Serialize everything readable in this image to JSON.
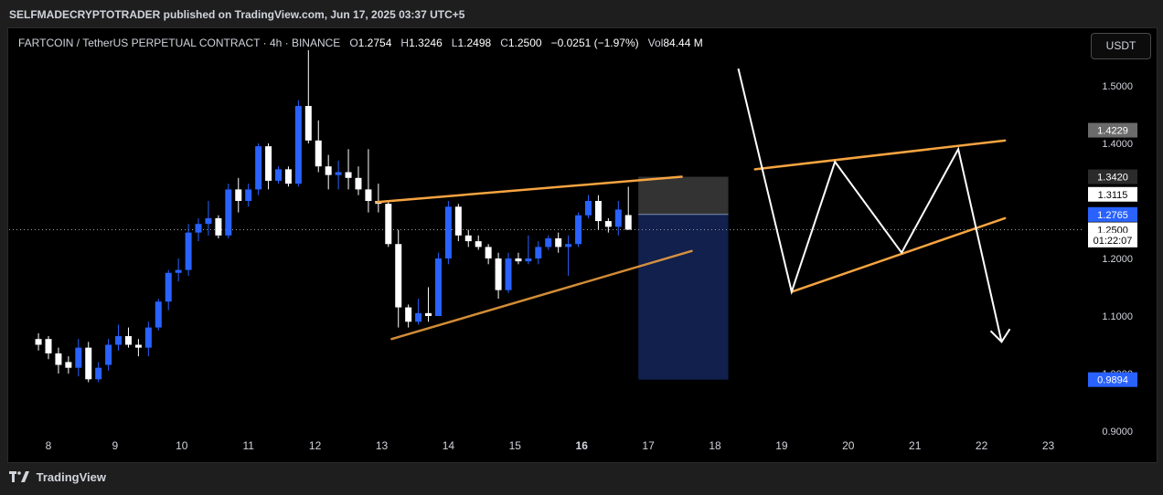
{
  "header": {
    "published": "SELFMADECRYPTOTRADER published on TradingView.com, Jun 17, 2025 03:37 UTC+5"
  },
  "legend": {
    "symbol": "FARTCOIN / TetherUS PERPETUAL CONTRACT · 4h · BINANCE",
    "o_label": "O",
    "o": "1.2754",
    "h_label": "H",
    "h": "1.3246",
    "l_label": "L",
    "l": "1.2498",
    "c_label": "C",
    "c": "1.2500",
    "change": "−0.0251 (−1.97%)",
    "vol_label": "Vol",
    "vol": "84.44 M"
  },
  "currency_button": "USDT",
  "footer": {
    "brand": "TradingView"
  },
  "colors": {
    "up": "#2962ff",
    "down": "#ffffff",
    "trendline": "#f7a440",
    "projection": "#ffffff",
    "background": "#000000"
  },
  "chart_data": {
    "type": "candlestick",
    "ylim": [
      0.9,
      1.57
    ],
    "y_ticks": [
      "1.5000",
      "1.4000",
      "1.2000",
      "1.1000",
      "1.0000",
      "0.9000"
    ],
    "x_ticks": [
      "8",
      "9",
      "10",
      "11",
      "12",
      "13",
      "14",
      "15",
      "16",
      "17",
      "18",
      "19",
      "20",
      "21",
      "22",
      "23"
    ],
    "price_labels": [
      {
        "text": "1.4229",
        "value": 1.4229,
        "style": "gray"
      },
      {
        "text": "1.3420",
        "value": 1.342,
        "style": "dark"
      },
      {
        "text": "1.3115",
        "value": 1.3115,
        "style": "white"
      },
      {
        "text": "1.2765",
        "value": 1.2765,
        "style": "blue"
      },
      {
        "text": "1.2500",
        "value": 1.25,
        "style": "current"
      },
      {
        "text": "01:22:07",
        "value": 1.232,
        "style": "timer"
      },
      {
        "text": "0.9894",
        "value": 0.9894,
        "style": "blue"
      }
    ],
    "current_price": 1.25,
    "candles": [
      {
        "t": 7.85,
        "o": 1.06,
        "h": 1.07,
        "l": 1.04,
        "c": 1.05
      },
      {
        "t": 8.0,
        "o": 1.06,
        "h": 1.065,
        "l": 1.025,
        "c": 1.035
      },
      {
        "t": 8.15,
        "o": 1.035,
        "h": 1.045,
        "l": 1.0,
        "c": 1.015
      },
      {
        "t": 8.3,
        "o": 1.02,
        "h": 1.03,
        "l": 1.0,
        "c": 1.01
      },
      {
        "t": 8.45,
        "o": 1.01,
        "h": 1.06,
        "l": 0.995,
        "c": 1.045
      },
      {
        "t": 8.6,
        "o": 1.045,
        "h": 1.055,
        "l": 0.985,
        "c": 0.99
      },
      {
        "t": 8.75,
        "o": 0.99,
        "h": 1.02,
        "l": 0.985,
        "c": 1.01
      },
      {
        "t": 8.9,
        "o": 1.015,
        "h": 1.06,
        "l": 1.005,
        "c": 1.05
      },
      {
        "t": 9.05,
        "o": 1.05,
        "h": 1.085,
        "l": 1.04,
        "c": 1.065
      },
      {
        "t": 9.2,
        "o": 1.065,
        "h": 1.08,
        "l": 1.045,
        "c": 1.05
      },
      {
        "t": 9.35,
        "o": 1.05,
        "h": 1.06,
        "l": 1.03,
        "c": 1.045
      },
      {
        "t": 9.5,
        "o": 1.045,
        "h": 1.09,
        "l": 1.03,
        "c": 1.08
      },
      {
        "t": 9.65,
        "o": 1.08,
        "h": 1.13,
        "l": 1.075,
        "c": 1.125
      },
      {
        "t": 9.8,
        "o": 1.125,
        "h": 1.18,
        "l": 1.11,
        "c": 1.175
      },
      {
        "t": 9.95,
        "o": 1.175,
        "h": 1.2,
        "l": 1.16,
        "c": 1.18
      },
      {
        "t": 10.1,
        "o": 1.18,
        "h": 1.26,
        "l": 1.17,
        "c": 1.245
      },
      {
        "t": 10.25,
        "o": 1.245,
        "h": 1.27,
        "l": 1.23,
        "c": 1.26
      },
      {
        "t": 10.4,
        "o": 1.26,
        "h": 1.3,
        "l": 1.24,
        "c": 1.27
      },
      {
        "t": 10.55,
        "o": 1.27,
        "h": 1.275,
        "l": 1.235,
        "c": 1.24
      },
      {
        "t": 10.7,
        "o": 1.24,
        "h": 1.33,
        "l": 1.235,
        "c": 1.32
      },
      {
        "t": 10.85,
        "o": 1.32,
        "h": 1.34,
        "l": 1.28,
        "c": 1.3
      },
      {
        "t": 11.0,
        "o": 1.3,
        "h": 1.33,
        "l": 1.29,
        "c": 1.32
      },
      {
        "t": 11.15,
        "o": 1.32,
        "h": 1.4,
        "l": 1.31,
        "c": 1.395
      },
      {
        "t": 11.3,
        "o": 1.395,
        "h": 1.4,
        "l": 1.32,
        "c": 1.335
      },
      {
        "t": 11.45,
        "o": 1.335,
        "h": 1.36,
        "l": 1.33,
        "c": 1.355
      },
      {
        "t": 11.6,
        "o": 1.355,
        "h": 1.36,
        "l": 1.325,
        "c": 1.33
      },
      {
        "t": 11.75,
        "o": 1.33,
        "h": 1.475,
        "l": 1.325,
        "c": 1.465
      },
      {
        "t": 11.9,
        "o": 1.465,
        "h": 1.562,
        "l": 1.4,
        "c": 1.405
      },
      {
        "t": 12.05,
        "o": 1.405,
        "h": 1.44,
        "l": 1.35,
        "c": 1.36
      },
      {
        "t": 12.2,
        "o": 1.36,
        "h": 1.38,
        "l": 1.32,
        "c": 1.345
      },
      {
        "t": 12.35,
        "o": 1.345,
        "h": 1.37,
        "l": 1.32,
        "c": 1.35
      },
      {
        "t": 12.5,
        "o": 1.35,
        "h": 1.39,
        "l": 1.32,
        "c": 1.34
      },
      {
        "t": 12.65,
        "o": 1.34,
        "h": 1.36,
        "l": 1.31,
        "c": 1.32
      },
      {
        "t": 12.8,
        "o": 1.32,
        "h": 1.39,
        "l": 1.28,
        "c": 1.3
      },
      {
        "t": 12.95,
        "o": 1.3,
        "h": 1.33,
        "l": 1.28,
        "c": 1.295
      },
      {
        "t": 13.1,
        "o": 1.295,
        "h": 1.3,
        "l": 1.22,
        "c": 1.225
      },
      {
        "t": 13.25,
        "o": 1.225,
        "h": 1.25,
        "l": 1.08,
        "c": 1.115
      },
      {
        "t": 13.4,
        "o": 1.115,
        "h": 1.12,
        "l": 1.08,
        "c": 1.09
      },
      {
        "t": 13.55,
        "o": 1.09,
        "h": 1.13,
        "l": 1.085,
        "c": 1.105
      },
      {
        "t": 13.7,
        "o": 1.105,
        "h": 1.15,
        "l": 1.09,
        "c": 1.1
      },
      {
        "t": 13.85,
        "o": 1.1,
        "h": 1.21,
        "l": 1.1,
        "c": 1.2
      },
      {
        "t": 14.0,
        "o": 1.2,
        "h": 1.3,
        "l": 1.19,
        "c": 1.29
      },
      {
        "t": 14.15,
        "o": 1.29,
        "h": 1.295,
        "l": 1.23,
        "c": 1.24
      },
      {
        "t": 14.3,
        "o": 1.24,
        "h": 1.25,
        "l": 1.22,
        "c": 1.23
      },
      {
        "t": 14.45,
        "o": 1.23,
        "h": 1.24,
        "l": 1.215,
        "c": 1.22
      },
      {
        "t": 14.6,
        "o": 1.22,
        "h": 1.225,
        "l": 1.19,
        "c": 1.2
      },
      {
        "t": 14.75,
        "o": 1.2,
        "h": 1.21,
        "l": 1.13,
        "c": 1.145
      },
      {
        "t": 14.9,
        "o": 1.145,
        "h": 1.21,
        "l": 1.14,
        "c": 1.2
      },
      {
        "t": 15.05,
        "o": 1.2,
        "h": 1.21,
        "l": 1.19,
        "c": 1.195
      },
      {
        "t": 15.2,
        "o": 1.195,
        "h": 1.24,
        "l": 1.19,
        "c": 1.2
      },
      {
        "t": 15.35,
        "o": 1.2,
        "h": 1.23,
        "l": 1.19,
        "c": 1.22
      },
      {
        "t": 15.5,
        "o": 1.22,
        "h": 1.24,
        "l": 1.215,
        "c": 1.235
      },
      {
        "t": 15.65,
        "o": 1.235,
        "h": 1.245,
        "l": 1.21,
        "c": 1.22
      },
      {
        "t": 15.8,
        "o": 1.22,
        "h": 1.24,
        "l": 1.17,
        "c": 1.225
      },
      {
        "t": 15.95,
        "o": 1.225,
        "h": 1.28,
        "l": 1.22,
        "c": 1.275
      },
      {
        "t": 16.1,
        "o": 1.275,
        "h": 1.31,
        "l": 1.27,
        "c": 1.3
      },
      {
        "t": 16.25,
        "o": 1.3,
        "h": 1.31,
        "l": 1.25,
        "c": 1.265
      },
      {
        "t": 16.4,
        "o": 1.265,
        "h": 1.27,
        "l": 1.245,
        "c": 1.255
      },
      {
        "t": 16.55,
        "o": 1.255,
        "h": 1.3,
        "l": 1.24,
        "c": 1.285
      },
      {
        "t": 16.7,
        "o": 1.2754,
        "h": 1.3246,
        "l": 1.2498,
        "c": 1.25
      }
    ],
    "trendlines": [
      {
        "name": "upper-wedge",
        "x1": 12.93,
        "y1": 1.298,
        "x2": 17.5,
        "y2": 1.342
      },
      {
        "name": "lower-wedge",
        "x1": 13.15,
        "y1": 1.06,
        "x2": 17.65,
        "y2": 1.213
      },
      {
        "name": "projected-upper",
        "x1": 18.6,
        "y1": 1.355,
        "x2": 22.35,
        "y2": 1.405
      },
      {
        "name": "projected-lower",
        "x1": 19.15,
        "y1": 1.142,
        "x2": 22.35,
        "y2": 1.27
      }
    ],
    "projection_path": [
      {
        "x": 18.35,
        "y": 1.53
      },
      {
        "x": 19.15,
        "y": 1.142
      },
      {
        "x": 19.8,
        "y": 1.368
      },
      {
        "x": 20.8,
        "y": 1.21
      },
      {
        "x": 21.65,
        "y": 1.39
      },
      {
        "x": 22.3,
        "y": 1.055
      }
    ],
    "position_box": {
      "x1": 16.85,
      "x2": 18.2,
      "stop": 1.342,
      "entry": 1.2765,
      "target": 0.9894
    }
  }
}
